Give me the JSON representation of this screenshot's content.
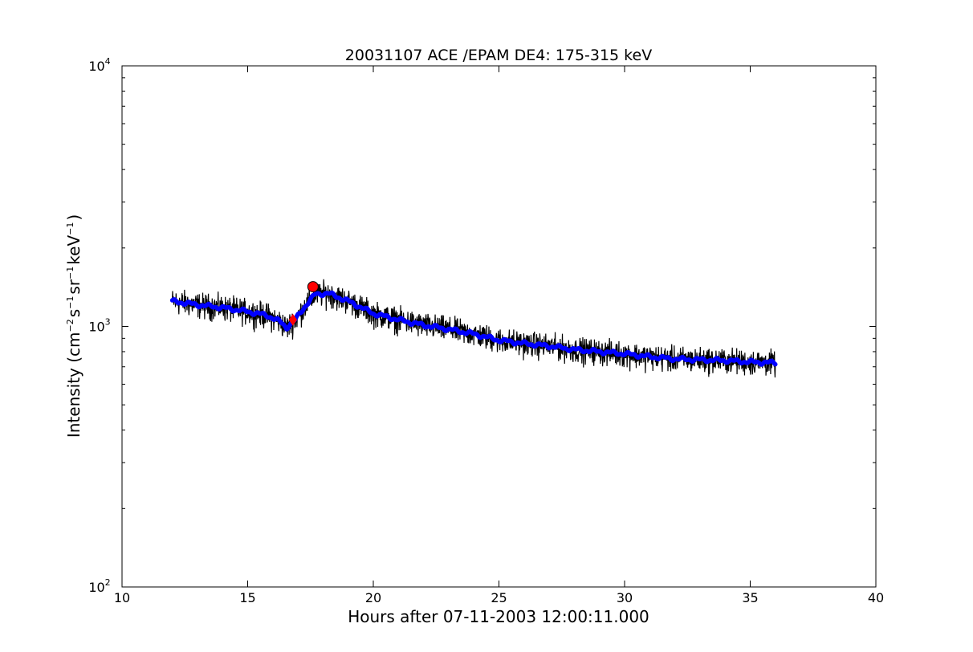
{
  "chart_data": {
    "type": "line",
    "title": "20031107 ACE /EPAM DE4: 175-315 keV",
    "xlabel": "Hours after 07-11-2003 12:00:11.000",
    "ylabel": {
      "prefix": "Intensity (cm",
      "parts": [
        {
          "sup": "−2",
          "text": "s"
        },
        {
          "sup": "−1",
          "text": "sr"
        },
        {
          "sup": "−1",
          "text": "keV"
        },
        {
          "sup": "−1",
          "text": ")"
        }
      ]
    },
    "xlim": [
      10,
      40
    ],
    "ylim": [
      100,
      10000
    ],
    "yscale": "log",
    "grid": false,
    "xticks": [
      "10",
      "15",
      "20",
      "25",
      "30",
      "35",
      "40"
    ],
    "yticks": [
      {
        "base": "10",
        "exp": "2"
      },
      {
        "base": "10",
        "exp": "3"
      },
      {
        "base": "10",
        "exp": "4"
      }
    ],
    "series": [
      {
        "role": "raw",
        "color": "#000000",
        "x_start": 12.0,
        "x_end": 36.0,
        "trend_x": [
          12.0,
          13.0,
          14.0,
          15.0,
          15.8,
          16.3,
          16.55,
          16.9,
          17.3,
          17.7,
          18.2,
          19.0,
          20.0,
          21.0,
          22.0,
          23.0,
          24.0,
          25.0,
          26.0,
          27.0,
          28.0,
          29.0,
          30.0,
          31.0,
          32.0,
          33.0,
          34.0,
          35.0,
          36.0
        ],
        "trend_y": [
          1250,
          1210,
          1180,
          1140,
          1100,
          1040,
          990,
          1060,
          1200,
          1330,
          1340,
          1250,
          1120,
          1060,
          1010,
          975,
          935,
          885,
          860,
          840,
          815,
          800,
          785,
          765,
          750,
          745,
          740,
          730,
          725
        ],
        "noise_frac": 0.055
      },
      {
        "role": "smoothed",
        "color": "#0000ff",
        "x_start": 12.0,
        "x_end": 36.0,
        "trend_x": [
          12.0,
          13.0,
          14.0,
          15.0,
          15.8,
          16.3,
          16.55,
          16.9,
          17.3,
          17.7,
          18.2,
          19.0,
          20.0,
          21.0,
          22.0,
          23.0,
          24.0,
          25.0,
          26.0,
          27.0,
          28.0,
          29.0,
          30.0,
          31.0,
          32.0,
          33.0,
          34.0,
          35.0,
          36.0
        ],
        "trend_y": [
          1250,
          1210,
          1180,
          1140,
          1100,
          1040,
          990,
          1060,
          1200,
          1330,
          1340,
          1250,
          1120,
          1060,
          1010,
          975,
          935,
          885,
          860,
          840,
          815,
          800,
          785,
          765,
          750,
          745,
          740,
          730,
          725
        ]
      }
    ],
    "markers": [
      {
        "shape": "diamond",
        "color": "#ff0000",
        "x": 16.8,
        "y": 1060
      },
      {
        "shape": "circle",
        "color": "#ff0000",
        "x": 17.6,
        "y": 1420
      }
    ]
  }
}
